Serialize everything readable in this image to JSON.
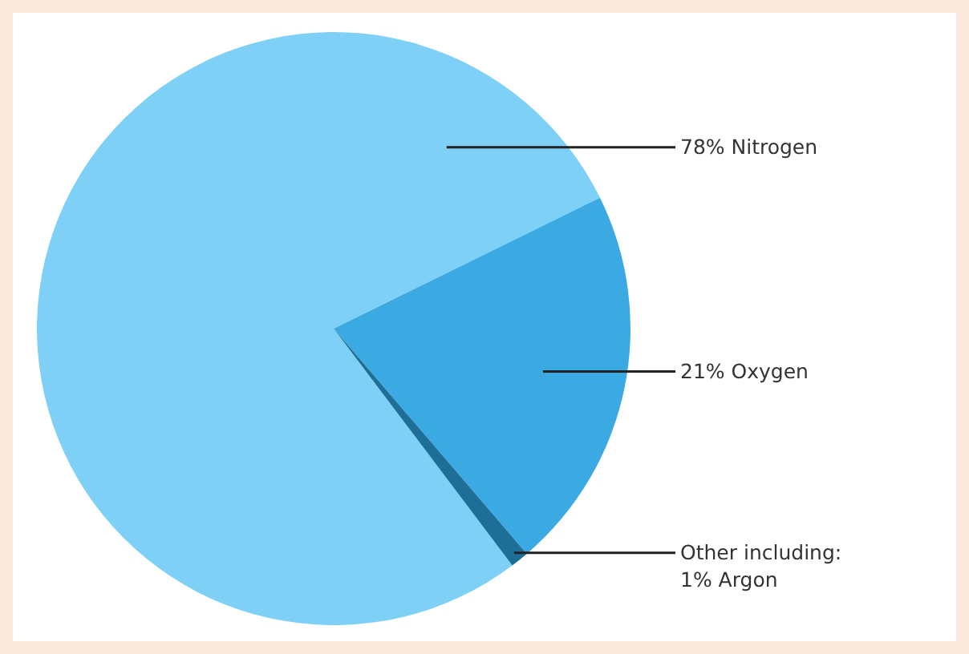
{
  "chart_data": {
    "type": "pie",
    "categories": [
      "78% Nitrogen",
      "21% Oxygen",
      "Other including:\n1% Argon"
    ],
    "values": [
      78,
      21,
      1
    ],
    "colors": [
      "#7fd0f6",
      "#3ba9e2",
      "#1e6f98"
    ],
    "legend": false
  }
}
